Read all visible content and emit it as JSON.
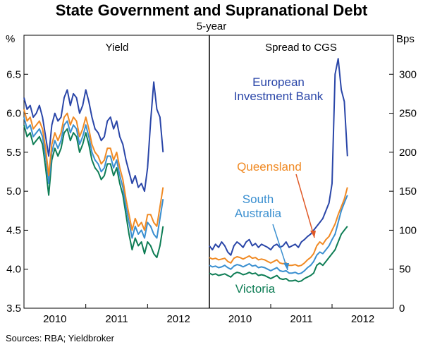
{
  "chart_data": {
    "type": "line",
    "title": "State Government and Supranational Debt",
    "subtitle": "5-year",
    "source": "Sources: RBA; Yieldbroker",
    "x_tick_labels": [
      "2010",
      "2011",
      "2012"
    ],
    "colors": {
      "eib": "#2a46a8",
      "queensland": "#f08a24",
      "south_australia": "#3a8fd0",
      "victoria": "#0e7d55",
      "arrow": "#e05a28"
    },
    "panels": [
      {
        "id": "yield",
        "title": "Yield",
        "y_unit": "%",
        "y_ticks": [
          3.5,
          4.0,
          4.5,
          5.0,
          5.5,
          6.0,
          6.5
        ],
        "y_tick_labels": [
          "3.5",
          "4.0",
          "4.5",
          "5.0",
          "5.5",
          "6.0",
          "6.5"
        ],
        "ylim": [
          3.5,
          7.0
        ],
        "xlim": [
          2009.5,
          2012.5
        ],
        "series": [
          {
            "name": "European Investment Bank",
            "key": "eib",
            "x": [
              2009.5,
              2009.55,
              2009.6,
              2009.65,
              2009.7,
              2009.75,
              2009.8,
              2009.85,
              2009.9,
              2009.95,
              2010.0,
              2010.05,
              2010.1,
              2010.15,
              2010.2,
              2010.25,
              2010.3,
              2010.35,
              2010.4,
              2010.45,
              2010.5,
              2010.55,
              2010.6,
              2010.65,
              2010.7,
              2010.75,
              2010.8,
              2010.85,
              2010.9,
              2010.95,
              2011.0,
              2011.05,
              2011.1,
              2011.15,
              2011.2,
              2011.25,
              2011.3,
              2011.35,
              2011.4,
              2011.45,
              2011.5,
              2011.55,
              2011.6,
              2011.65,
              2011.7,
              2011.75
            ],
            "y": [
              6.2,
              6.05,
              6.1,
              5.95,
              6.0,
              6.1,
              5.95,
              5.7,
              5.45,
              5.85,
              6.0,
              5.9,
              5.95,
              6.2,
              6.3,
              6.1,
              6.25,
              6.2,
              6.0,
              6.1,
              6.3,
              6.15,
              5.95,
              5.8,
              5.75,
              5.65,
              5.7,
              5.9,
              5.95,
              5.8,
              5.9,
              5.7,
              5.6,
              5.4,
              5.25,
              5.1,
              5.2,
              5.05,
              5.1,
              5.0,
              5.3,
              5.9,
              6.4,
              6.05,
              5.95,
              5.5
            ]
          },
          {
            "name": "Queensland",
            "key": "queensland",
            "x": [
              2009.5,
              2009.55,
              2009.6,
              2009.65,
              2009.7,
              2009.75,
              2009.8,
              2009.85,
              2009.9,
              2009.95,
              2010.0,
              2010.05,
              2010.1,
              2010.15,
              2010.2,
              2010.25,
              2010.3,
              2010.35,
              2010.4,
              2010.45,
              2010.5,
              2010.55,
              2010.6,
              2010.65,
              2010.7,
              2010.75,
              2010.8,
              2010.85,
              2010.9,
              2010.95,
              2011.0,
              2011.05,
              2011.1,
              2011.15,
              2011.2,
              2011.25,
              2011.3,
              2011.35,
              2011.4,
              2011.45,
              2011.5,
              2011.55,
              2011.6,
              2011.65,
              2011.7,
              2011.75
            ],
            "y": [
              6.05,
              5.9,
              5.95,
              5.8,
              5.85,
              5.9,
              5.8,
              5.55,
              5.2,
              5.6,
              5.75,
              5.65,
              5.75,
              5.95,
              6.0,
              5.85,
              5.95,
              5.9,
              5.7,
              5.8,
              5.95,
              5.8,
              5.6,
              5.5,
              5.45,
              5.35,
              5.4,
              5.55,
              5.55,
              5.4,
              5.5,
              5.3,
              5.15,
              4.9,
              4.7,
              4.5,
              4.65,
              4.55,
              4.6,
              4.5,
              4.7,
              4.7,
              4.6,
              4.55,
              4.8,
              5.05
            ]
          },
          {
            "name": "South Australia",
            "key": "south_australia",
            "x": [
              2009.5,
              2009.55,
              2009.6,
              2009.65,
              2009.7,
              2009.75,
              2009.8,
              2009.85,
              2009.9,
              2009.95,
              2010.0,
              2010.05,
              2010.1,
              2010.15,
              2010.2,
              2010.25,
              2010.3,
              2010.35,
              2010.4,
              2010.45,
              2010.5,
              2010.55,
              2010.6,
              2010.65,
              2010.7,
              2010.75,
              2010.8,
              2010.85,
              2010.9,
              2010.95,
              2011.0,
              2011.05,
              2011.1,
              2011.15,
              2011.2,
              2011.25,
              2011.3,
              2011.35,
              2011.4,
              2011.45,
              2011.5,
              2011.55,
              2011.6,
              2011.65,
              2011.7,
              2011.75
            ],
            "y": [
              5.95,
              5.8,
              5.85,
              5.7,
              5.75,
              5.8,
              5.7,
              5.45,
              5.1,
              5.5,
              5.65,
              5.55,
              5.65,
              5.85,
              5.9,
              5.75,
              5.85,
              5.8,
              5.6,
              5.7,
              5.85,
              5.7,
              5.5,
              5.4,
              5.35,
              5.25,
              5.3,
              5.45,
              5.45,
              5.3,
              5.4,
              5.2,
              5.05,
              4.8,
              4.6,
              4.4,
              4.55,
              4.45,
              4.5,
              4.4,
              4.6,
              4.55,
              4.45,
              4.4,
              4.65,
              4.9
            ]
          },
          {
            "name": "Victoria",
            "key": "victoria",
            "x": [
              2009.5,
              2009.55,
              2009.6,
              2009.65,
              2009.7,
              2009.75,
              2009.8,
              2009.85,
              2009.9,
              2009.95,
              2010.0,
              2010.05,
              2010.1,
              2010.15,
              2010.2,
              2010.25,
              2010.3,
              2010.35,
              2010.4,
              2010.45,
              2010.5,
              2010.55,
              2010.6,
              2010.65,
              2010.7,
              2010.75,
              2010.8,
              2010.85,
              2010.9,
              2010.95,
              2011.0,
              2011.05,
              2011.1,
              2011.15,
              2011.2,
              2011.25,
              2011.3,
              2011.35,
              2011.4,
              2011.45,
              2011.5,
              2011.55,
              2011.6,
              2011.65,
              2011.7,
              2011.75
            ],
            "y": [
              5.85,
              5.7,
              5.75,
              5.6,
              5.65,
              5.7,
              5.6,
              5.3,
              4.95,
              5.4,
              5.55,
              5.45,
              5.55,
              5.75,
              5.8,
              5.65,
              5.75,
              5.7,
              5.5,
              5.6,
              5.75,
              5.6,
              5.4,
              5.3,
              5.25,
              5.15,
              5.2,
              5.35,
              5.35,
              5.2,
              5.3,
              5.1,
              4.95,
              4.7,
              4.45,
              4.25,
              4.4,
              4.3,
              4.35,
              4.2,
              4.35,
              4.3,
              4.2,
              4.15,
              4.3,
              4.55
            ]
          }
        ]
      },
      {
        "id": "spread",
        "title": "Spread to CGS",
        "y_unit": "Bps",
        "y_ticks": [
          0,
          50,
          100,
          150,
          200,
          250,
          300
        ],
        "y_tick_labels": [
          "0",
          "50",
          "100",
          "150",
          "200",
          "250",
          "300"
        ],
        "ylim": [
          0,
          350
        ],
        "xlim": [
          2009.5,
          2012.5
        ],
        "series": [
          {
            "name": "European Investment Bank",
            "key": "eib",
            "x": [
              2009.5,
              2009.55,
              2009.6,
              2009.65,
              2009.7,
              2009.75,
              2009.8,
              2009.85,
              2009.9,
              2009.95,
              2010.0,
              2010.05,
              2010.1,
              2010.15,
              2010.2,
              2010.25,
              2010.3,
              2010.35,
              2010.4,
              2010.45,
              2010.5,
              2010.55,
              2010.6,
              2010.65,
              2010.7,
              2010.75,
              2010.8,
              2010.85,
              2010.9,
              2010.95,
              2011.0,
              2011.05,
              2011.1,
              2011.15,
              2011.2,
              2011.25,
              2011.3,
              2011.35,
              2011.4,
              2011.45,
              2011.5,
              2011.55,
              2011.6,
              2011.65,
              2011.7,
              2011.75
            ],
            "y": [
              80,
              75,
              82,
              78,
              85,
              80,
              72,
              68,
              80,
              85,
              82,
              78,
              85,
              88,
              80,
              83,
              78,
              82,
              80,
              78,
              75,
              80,
              82,
              78,
              80,
              85,
              78,
              80,
              82,
              78,
              85,
              88,
              92,
              95,
              100,
              105,
              110,
              115,
              125,
              135,
              160,
              300,
              320,
              280,
              265,
              195
            ]
          },
          {
            "name": "Queensland",
            "key": "queensland",
            "x": [
              2009.5,
              2009.55,
              2009.6,
              2009.65,
              2009.7,
              2009.75,
              2009.8,
              2009.85,
              2009.9,
              2009.95,
              2010.0,
              2010.05,
              2010.1,
              2010.15,
              2010.2,
              2010.25,
              2010.3,
              2010.35,
              2010.4,
              2010.45,
              2010.5,
              2010.55,
              2010.6,
              2010.65,
              2010.7,
              2010.75,
              2010.8,
              2010.85,
              2010.9,
              2010.95,
              2011.0,
              2011.05,
              2011.1,
              2011.15,
              2011.2,
              2011.25,
              2011.3,
              2011.35,
              2011.4,
              2011.45,
              2011.5,
              2011.55,
              2011.6,
              2011.65,
              2011.7,
              2011.75
            ],
            "y": [
              65,
              63,
              64,
              62,
              63,
              64,
              60,
              58,
              64,
              66,
              65,
              63,
              65,
              67,
              64,
              65,
              62,
              63,
              62,
              60,
              58,
              60,
              62,
              58,
              57,
              58,
              55,
              55,
              56,
              54,
              55,
              58,
              62,
              65,
              70,
              80,
              85,
              82,
              88,
              92,
              100,
              108,
              120,
              130,
              140,
              155
            ]
          },
          {
            "name": "South Australia",
            "key": "south_australia",
            "x": [
              2009.5,
              2009.55,
              2009.6,
              2009.65,
              2009.7,
              2009.75,
              2009.8,
              2009.85,
              2009.9,
              2009.95,
              2010.0,
              2010.05,
              2010.1,
              2010.15,
              2010.2,
              2010.25,
              2010.3,
              2010.35,
              2010.4,
              2010.45,
              2010.5,
              2010.55,
              2010.6,
              2010.65,
              2010.7,
              2010.75,
              2010.8,
              2010.85,
              2010.9,
              2010.95,
              2011.0,
              2011.05,
              2011.1,
              2011.15,
              2011.2,
              2011.25,
              2011.3,
              2011.35,
              2011.4,
              2011.45,
              2011.5,
              2011.55,
              2011.6,
              2011.65,
              2011.7,
              2011.75
            ],
            "y": [
              55,
              53,
              54,
              52,
              53,
              55,
              52,
              50,
              54,
              56,
              55,
              53,
              55,
              57,
              54,
              55,
              52,
              53,
              52,
              50,
              48,
              50,
              52,
              48,
              47,
              48,
              45,
              45,
              46,
              44,
              45,
              48,
              52,
              55,
              60,
              68,
              72,
              70,
              75,
              80,
              88,
              95,
              110,
              125,
              135,
              145
            ]
          },
          {
            "name": "Victoria",
            "key": "victoria",
            "x": [
              2009.5,
              2009.55,
              2009.6,
              2009.65,
              2009.7,
              2009.75,
              2009.8,
              2009.85,
              2009.9,
              2009.95,
              2010.0,
              2010.05,
              2010.1,
              2010.15,
              2010.2,
              2010.25,
              2010.3,
              2010.35,
              2010.4,
              2010.45,
              2010.5,
              2010.55,
              2010.6,
              2010.65,
              2010.7,
              2010.75,
              2010.8,
              2010.85,
              2010.9,
              2010.95,
              2011.0,
              2011.05,
              2011.1,
              2011.15,
              2011.2,
              2011.25,
              2011.3,
              2011.35,
              2011.4,
              2011.45,
              2011.5,
              2011.55,
              2011.6,
              2011.65,
              2011.7,
              2011.75
            ],
            "y": [
              45,
              43,
              44,
              42,
              43,
              44,
              42,
              40,
              44,
              46,
              45,
              43,
              44,
              46,
              44,
              45,
              42,
              43,
              42,
              40,
              38,
              40,
              42,
              38,
              37,
              38,
              35,
              35,
              36,
              34,
              35,
              38,
              40,
              42,
              45,
              55,
              58,
              55,
              60,
              65,
              70,
              75,
              85,
              95,
              100,
              105
            ]
          }
        ]
      }
    ],
    "annotations": [
      {
        "text_lines": [
          "European",
          "Investment Bank"
        ],
        "key": "eib"
      },
      {
        "text_lines": [
          "Queensland"
        ],
        "key": "queensland"
      },
      {
        "text_lines": [
          "South",
          "Australia"
        ],
        "key": "south_australia"
      },
      {
        "text_lines": [
          "Victoria"
        ],
        "key": "victoria"
      }
    ]
  }
}
